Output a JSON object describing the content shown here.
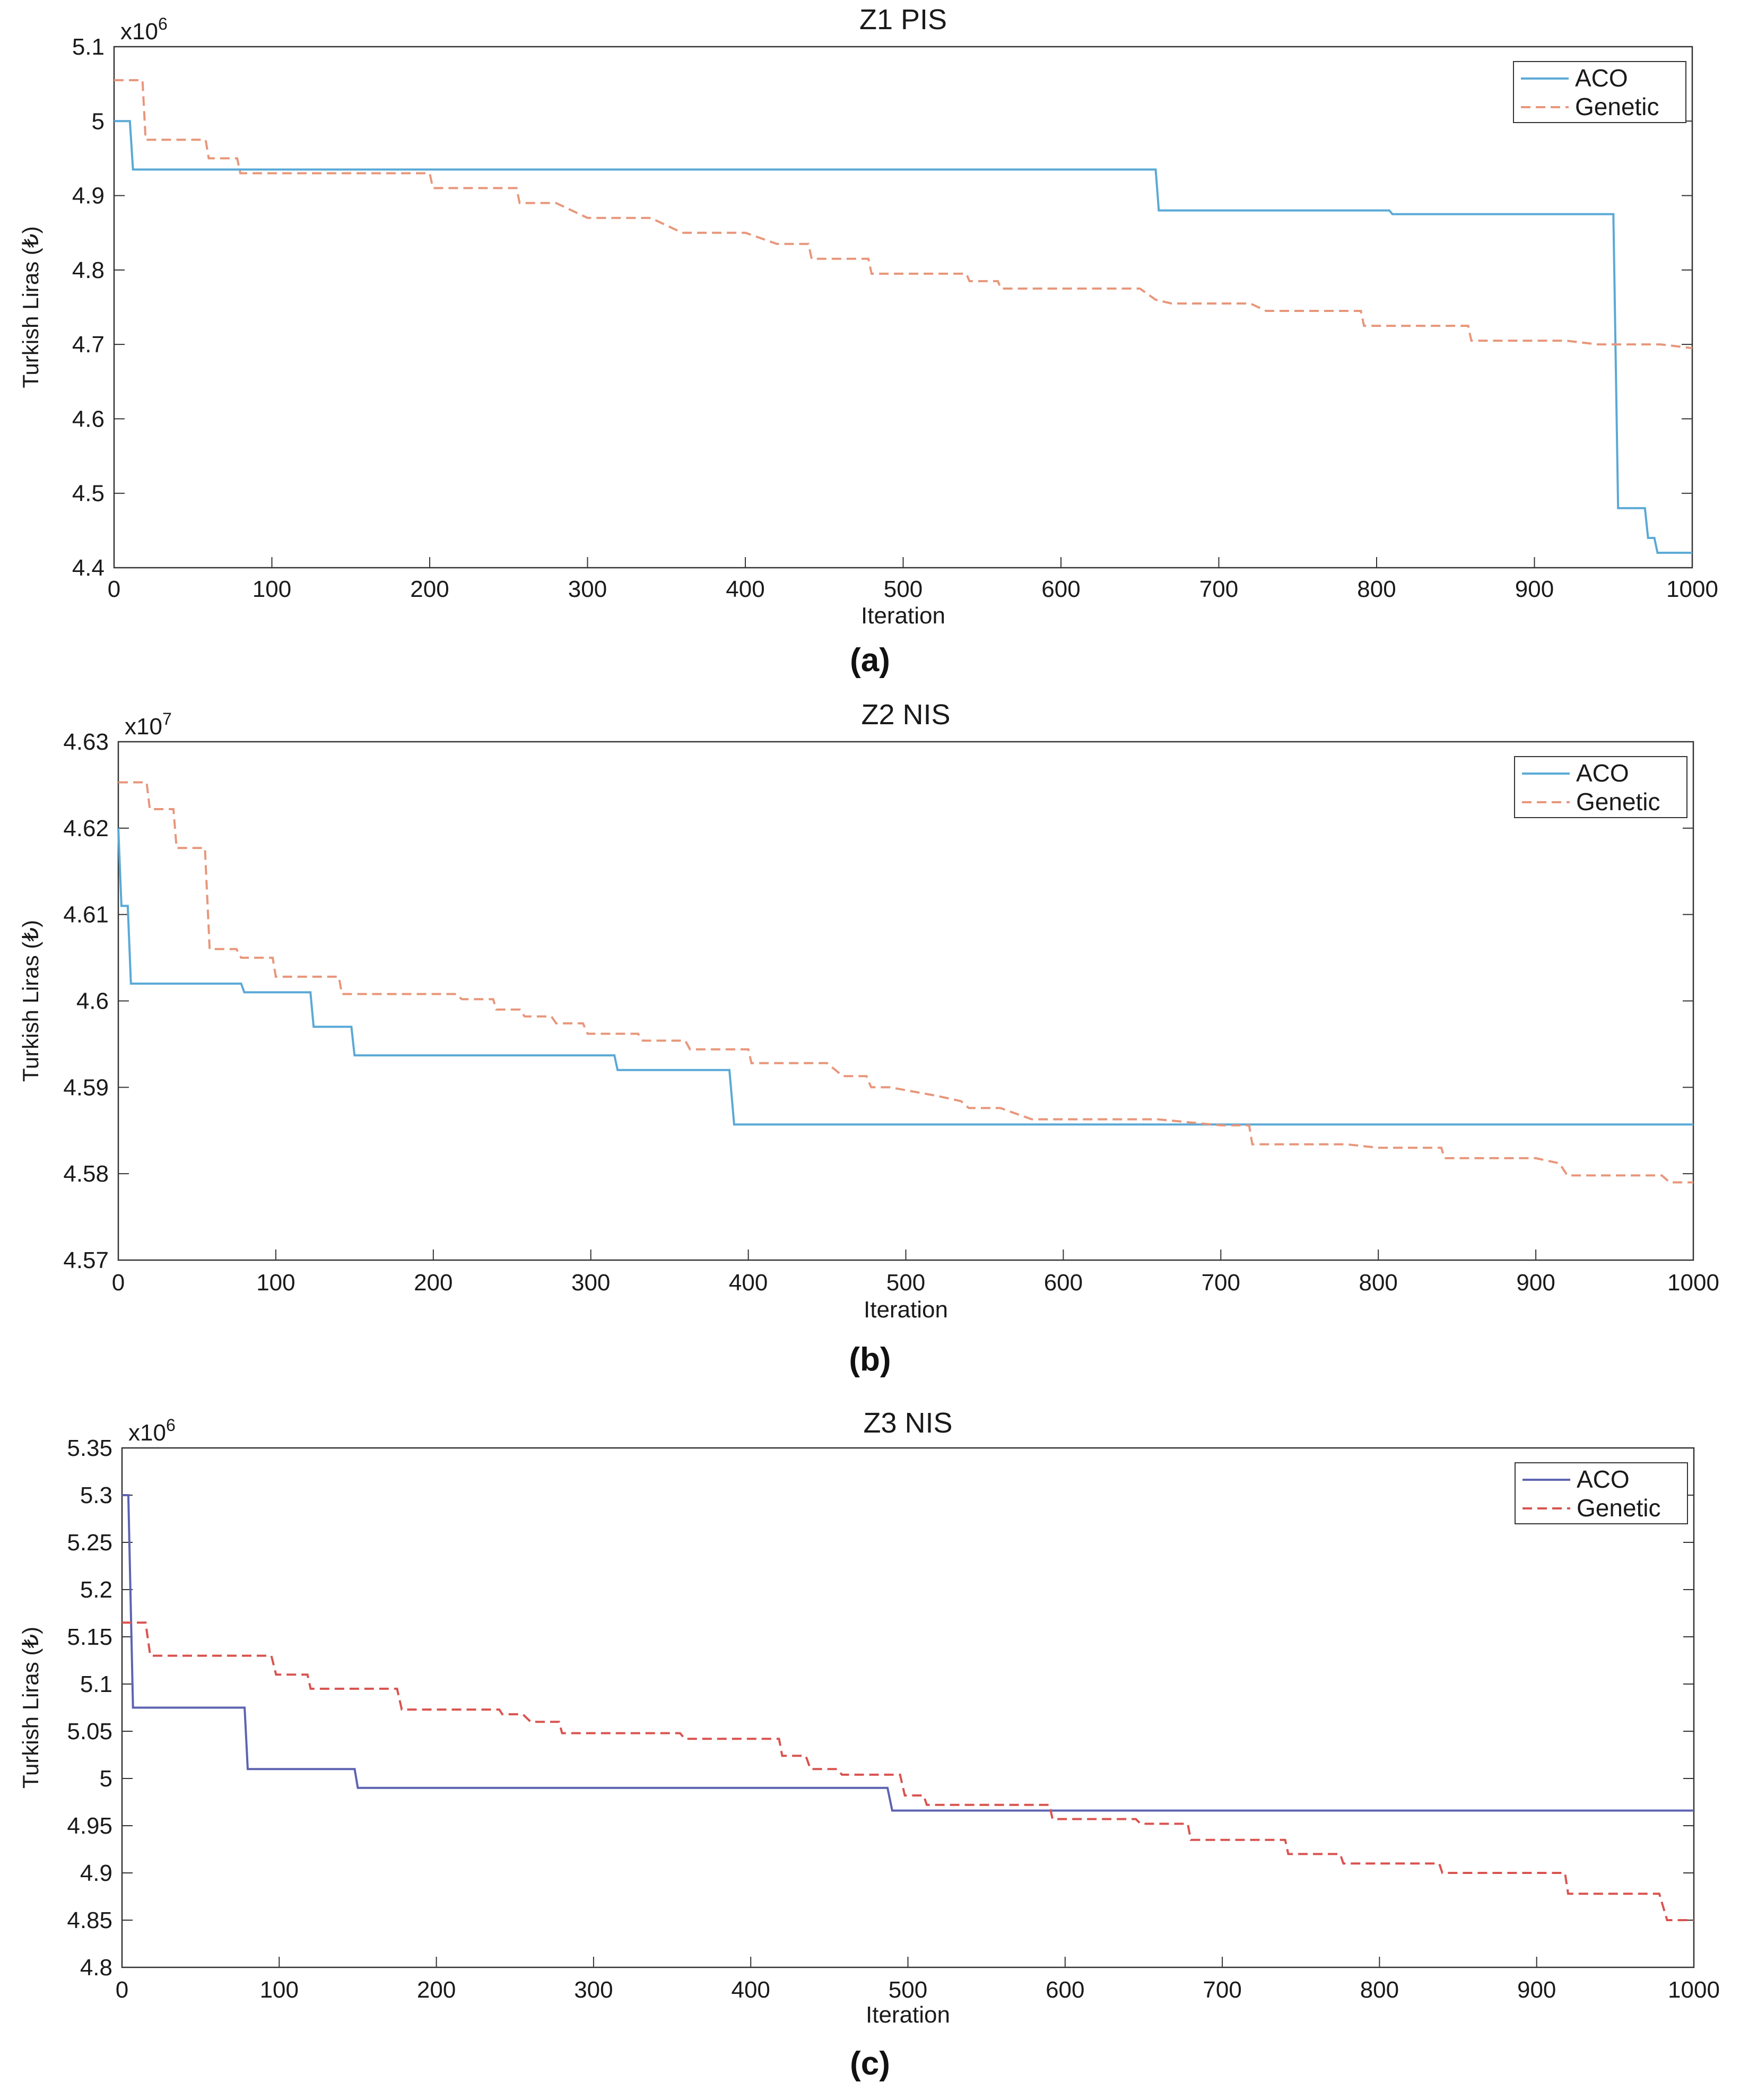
{
  "chart_data": [
    {
      "type": "line",
      "title": "Z1 PIS",
      "panel_label": "(a)",
      "exponent": "x10",
      "exponent_power": "6",
      "xlabel": "Iteration",
      "ylabel": "Turkish Liras (₺)",
      "xlim": [
        0,
        1000
      ],
      "ylim": [
        4.4,
        5.1
      ],
      "x_ticks": [
        0,
        100,
        200,
        300,
        400,
        500,
        600,
        700,
        800,
        900,
        1000
      ],
      "y_ticks": [
        "4.4",
        "4.5",
        "4.6",
        "4.7",
        "4.8",
        "4.9",
        "5",
        "5.1"
      ],
      "legend_position": "top-right",
      "series": [
        {
          "name": "ACO",
          "color": "#5aa9d6",
          "dash": "solid",
          "points": [
            [
              0,
              5.0
            ],
            [
              10,
              5.0
            ],
            [
              12,
              4.935
            ],
            [
              660,
              4.935
            ],
            [
              662,
              4.88
            ],
            [
              808,
              4.88
            ],
            [
              810,
              4.875
            ],
            [
              950,
              4.875
            ],
            [
              953,
              4.48
            ],
            [
              970,
              4.48
            ],
            [
              972,
              4.44
            ],
            [
              976,
              4.44
            ],
            [
              978,
              4.42
            ],
            [
              1000,
              4.42
            ]
          ]
        },
        {
          "name": "Genetic",
          "color": "#e8967a",
          "dash": "dashed",
          "points": [
            [
              0,
              5.055
            ],
            [
              18,
              5.055
            ],
            [
              20,
              4.975
            ],
            [
              58,
              4.975
            ],
            [
              60,
              4.95
            ],
            [
              78,
              4.95
            ],
            [
              80,
              4.93
            ],
            [
              200,
              4.93
            ],
            [
              202,
              4.91
            ],
            [
              255,
              4.91
            ],
            [
              257,
              4.89
            ],
            [
              280,
              4.89
            ],
            [
              300,
              4.87
            ],
            [
              340,
              4.87
            ],
            [
              360,
              4.85
            ],
            [
              400,
              4.85
            ],
            [
              420,
              4.835
            ],
            [
              440,
              4.835
            ],
            [
              442,
              4.815
            ],
            [
              478,
              4.815
            ],
            [
              480,
              4.795
            ],
            [
              540,
              4.795
            ],
            [
              542,
              4.785
            ],
            [
              560,
              4.785
            ],
            [
              562,
              4.775
            ],
            [
              650,
              4.775
            ],
            [
              660,
              4.76
            ],
            [
              670,
              4.755
            ],
            [
              720,
              4.755
            ],
            [
              730,
              4.745
            ],
            [
              790,
              4.745
            ],
            [
              792,
              4.725
            ],
            [
              858,
              4.725
            ],
            [
              860,
              4.705
            ],
            [
              920,
              4.705
            ],
            [
              940,
              4.7
            ],
            [
              980,
              4.7
            ],
            [
              1000,
              4.695
            ]
          ]
        }
      ]
    },
    {
      "type": "line",
      "title": "Z2 NIS",
      "panel_label": "(b)",
      "exponent": "x10",
      "exponent_power": "7",
      "xlabel": "Iteration",
      "ylabel": "Turkish Liras (₺)",
      "xlim": [
        0,
        1000
      ],
      "ylim": [
        4.57,
        4.63
      ],
      "x_ticks": [
        0,
        100,
        200,
        300,
        400,
        500,
        600,
        700,
        800,
        900,
        1000
      ],
      "y_ticks": [
        "4.57",
        "4.58",
        "4.59",
        "4.6",
        "4.61",
        "4.62",
        "4.63"
      ],
      "legend_position": "top-right",
      "series": [
        {
          "name": "ACO",
          "color": "#5aa9d6",
          "dash": "solid",
          "points": [
            [
              0,
              4.62
            ],
            [
              2,
              4.611
            ],
            [
              6,
              4.611
            ],
            [
              8,
              4.602
            ],
            [
              78,
              4.602
            ],
            [
              80,
              4.601
            ],
            [
              122,
              4.601
            ],
            [
              124,
              4.597
            ],
            [
              148,
              4.597
            ],
            [
              150,
              4.5937
            ],
            [
              315,
              4.5937
            ],
            [
              317,
              4.592
            ],
            [
              388,
              4.592
            ],
            [
              391,
              4.5857
            ],
            [
              1000,
              4.5857
            ]
          ]
        },
        {
          "name": "Genetic",
          "color": "#e8967a",
          "dash": "dashed",
          "points": [
            [
              0,
              4.6253
            ],
            [
              18,
              4.6253
            ],
            [
              20,
              4.6222
            ],
            [
              35,
              4.6222
            ],
            [
              37,
              4.6177
            ],
            [
              55,
              4.6177
            ],
            [
              58,
              4.606
            ],
            [
              75,
              4.606
            ],
            [
              78,
              4.605
            ],
            [
              98,
              4.605
            ],
            [
              100,
              4.6028
            ],
            [
              140,
              4.6028
            ],
            [
              142,
              4.6008
            ],
            [
              215,
              4.6008
            ],
            [
              218,
              4.6002
            ],
            [
              238,
              4.6002
            ],
            [
              240,
              4.599
            ],
            [
              255,
              4.599
            ],
            [
              258,
              4.5982
            ],
            [
              275,
              4.5982
            ],
            [
              278,
              4.5974
            ],
            [
              295,
              4.5974
            ],
            [
              298,
              4.5962
            ],
            [
              330,
              4.5962
            ],
            [
              333,
              4.5954
            ],
            [
              360,
              4.5954
            ],
            [
              363,
              4.5944
            ],
            [
              400,
              4.5944
            ],
            [
              402,
              4.5928
            ],
            [
              450,
              4.5928
            ],
            [
              460,
              4.5913
            ],
            [
              475,
              4.5913
            ],
            [
              478,
              4.59
            ],
            [
              490,
              4.59
            ],
            [
              520,
              4.589
            ],
            [
              535,
              4.5884
            ],
            [
              540,
              4.5876
            ],
            [
              560,
              4.5876
            ],
            [
              580,
              4.5863
            ],
            [
              660,
              4.5863
            ],
            [
              700,
              4.5856
            ],
            [
              718,
              4.5856
            ],
            [
              720,
              4.5834
            ],
            [
              780,
              4.5834
            ],
            [
              800,
              4.583
            ],
            [
              840,
              4.583
            ],
            [
              842,
              4.5818
            ],
            [
              900,
              4.5818
            ],
            [
              915,
              4.5812
            ],
            [
              920,
              4.5798
            ],
            [
              980,
              4.5798
            ],
            [
              985,
              4.579
            ],
            [
              1000,
              4.579
            ]
          ]
        }
      ]
    },
    {
      "type": "line",
      "title": "Z3 NIS",
      "panel_label": "(c)",
      "exponent": "x10",
      "exponent_power": "6",
      "xlabel": "Iteration",
      "ylabel": "Turkish Liras (₺)",
      "xlim": [
        0,
        1000
      ],
      "ylim": [
        4.8,
        5.35
      ],
      "x_ticks": [
        0,
        100,
        200,
        300,
        400,
        500,
        600,
        700,
        800,
        900,
        1000
      ],
      "y_ticks": [
        "4.8",
        "4.85",
        "4.9",
        "4.95",
        "5",
        "5.05",
        "5.1",
        "5.15",
        "5.2",
        "5.25",
        "5.3",
        "5.35"
      ],
      "legend_position": "top-right",
      "series": [
        {
          "name": "ACO",
          "color": "#5d63b0",
          "dash": "solid",
          "points": [
            [
              0,
              5.3
            ],
            [
              4,
              5.3
            ],
            [
              7,
              5.075
            ],
            [
              78,
              5.075
            ],
            [
              80,
              5.01
            ],
            [
              148,
              5.01
            ],
            [
              150,
              4.99
            ],
            [
              487,
              4.99
            ],
            [
              490,
              4.966
            ],
            [
              1000,
              4.966
            ]
          ]
        },
        {
          "name": "Genetic",
          "color": "#d9534f",
          "dash": "dashed",
          "points": [
            [
              0,
              5.165
            ],
            [
              15,
              5.165
            ],
            [
              18,
              5.13
            ],
            [
              95,
              5.13
            ],
            [
              98,
              5.11
            ],
            [
              118,
              5.11
            ],
            [
              120,
              5.095
            ],
            [
              175,
              5.095
            ],
            [
              178,
              5.073
            ],
            [
              240,
              5.073
            ],
            [
              242,
              5.068
            ],
            [
              255,
              5.068
            ],
            [
              260,
              5.06
            ],
            [
              278,
              5.06
            ],
            [
              280,
              5.048
            ],
            [
              355,
              5.048
            ],
            [
              358,
              5.042
            ],
            [
              418,
              5.042
            ],
            [
              420,
              5.024
            ],
            [
              435,
              5.024
            ],
            [
              438,
              5.01
            ],
            [
              455,
              5.01
            ],
            [
              458,
              5.004
            ],
            [
              495,
              5.004
            ],
            [
              498,
              4.982
            ],
            [
              510,
              4.982
            ],
            [
              512,
              4.972
            ],
            [
              590,
              4.972
            ],
            [
              592,
              4.957
            ],
            [
              645,
              4.957
            ],
            [
              648,
              4.952
            ],
            [
              678,
              4.952
            ],
            [
              680,
              4.935
            ],
            [
              740,
              4.935
            ],
            [
              742,
              4.92
            ],
            [
              775,
              4.92
            ],
            [
              777,
              4.91
            ],
            [
              838,
              4.91
            ],
            [
              840,
              4.9
            ],
            [
              918,
              4.9
            ],
            [
              920,
              4.878
            ],
            [
              978,
              4.878
            ],
            [
              983,
              4.85
            ],
            [
              1000,
              4.85
            ]
          ]
        }
      ]
    }
  ]
}
